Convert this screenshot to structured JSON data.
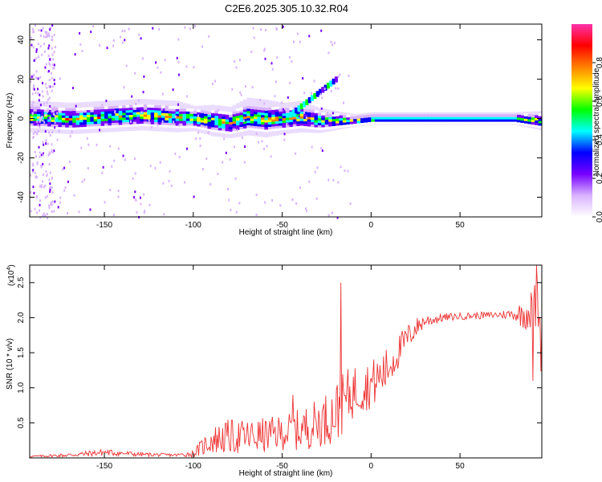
{
  "title": "C2E6.2025.305.10.32.R04",
  "chart_data": [
    {
      "type": "heatmap",
      "title": "C2E6.2025.305.10.32.R04",
      "xlabel": "Height of straight line (km)",
      "ylabel": "Frequency (Hz)",
      "xlim": [
        -192,
        96
      ],
      "ylim": [
        -50,
        48
      ],
      "xticks": [
        -150,
        -100,
        -50,
        0,
        50
      ],
      "xtick_labels": [
        "-150",
        "-100",
        "-50",
        "0",
        "50"
      ],
      "yticks": [
        -40,
        -20,
        0,
        20,
        40
      ],
      "ytick_labels": [
        "-40",
        "-20",
        "0",
        "20",
        "40"
      ],
      "description_of_pattern": "Dense band of spectral power centred near 0 Hz across all heights; broad scatter (-50 to +48 Hz) below -180 km; rising branch from -45 km to -20 km reaching ~+20 Hz; narrow stable band above 0 km",
      "ridge": {
        "x": [
          -190,
          -170,
          -150,
          -130,
          -110,
          -100,
          -90,
          -80,
          -70,
          -60,
          -50,
          -40,
          -30,
          -20,
          -10,
          0,
          20,
          40,
          60,
          80,
          94
        ],
        "frequency_hz": [
          1,
          0,
          1,
          2,
          1,
          0,
          -1,
          -2,
          1,
          0,
          0,
          1,
          -1,
          -1,
          -1,
          0,
          0,
          0,
          0,
          0,
          -1
        ],
        "half_width_hz": [
          5,
          5,
          5,
          5,
          5,
          4,
          5,
          5,
          6,
          6,
          5,
          5,
          4,
          3,
          2,
          2,
          2,
          2,
          2,
          2,
          3
        ]
      },
      "colorbar": {
        "label": "Normalized spectral amplitude",
        "range": [
          0.0,
          1.0
        ],
        "ticks": [
          0.0,
          0.2,
          0.4,
          0.6,
          0.8
        ],
        "tick_labels": [
          "0.0",
          "0.2",
          "0.4",
          "0.6",
          "0.8"
        ],
        "colors": [
          "#ffffff",
          "#d9b3ff",
          "#7700ff",
          "#0000ff",
          "#00ffff",
          "#00ff00",
          "#ffff00",
          "#ff8000",
          "#ff0000",
          "#ff33aa"
        ]
      }
    },
    {
      "type": "line",
      "xlabel": "Height of straight line (km)",
      "ylabel": "SNR (10 * v/v)",
      "y_scale_label_base": "(x10",
      "y_scale_label_exp": "4",
      "y_scale_label_end": ")",
      "xlim": [
        -192,
        96
      ],
      "ylim": [
        0,
        2.75
      ],
      "xticks": [
        -150,
        -100,
        -50,
        0,
        50
      ],
      "xtick_labels": [
        "-150",
        "-100",
        "-50",
        "0",
        "50"
      ],
      "yticks": [
        0.5,
        1.0,
        1.5,
        2.0,
        2.5
      ],
      "ytick_labels": [
        "0.5",
        "1.0",
        "1.5",
        "2.0",
        "2.5"
      ],
      "series": [
        {
          "name": "SNR",
          "color": "#ee3333",
          "x": [
            -192,
            -170,
            -150,
            -130,
            -110,
            -100,
            -90,
            -80,
            -70,
            -60,
            -50,
            -40,
            -30,
            -22,
            -18,
            -14,
            -10,
            -5,
            0,
            5,
            10,
            15,
            20,
            25,
            30,
            40,
            50,
            60,
            70,
            80,
            85,
            90,
            94,
            96
          ],
          "mean": [
            0.02,
            0.04,
            0.08,
            0.05,
            0.04,
            0.06,
            0.25,
            0.3,
            0.3,
            0.32,
            0.36,
            0.4,
            0.5,
            0.6,
            0.7,
            0.85,
            0.95,
            1.0,
            1.05,
            1.15,
            1.3,
            1.5,
            1.7,
            1.85,
            1.95,
            2.0,
            2.02,
            2.03,
            2.04,
            2.05,
            2.05,
            2.1,
            2.2,
            1.5
          ],
          "spread": [
            0.01,
            0.03,
            0.05,
            0.03,
            0.02,
            0.05,
            0.2,
            0.25,
            0.25,
            0.25,
            0.25,
            0.3,
            0.35,
            0.4,
            0.45,
            0.4,
            0.4,
            0.35,
            0.35,
            0.35,
            0.3,
            0.25,
            0.2,
            0.15,
            0.1,
            0.06,
            0.05,
            0.05,
            0.05,
            0.08,
            0.2,
            0.3,
            0.4,
            0.5
          ],
          "spikes": [
            {
              "x": -17,
              "y": 2.5
            },
            {
              "x": -44,
              "y": 0.9
            },
            {
              "x": 93,
              "y": 2.75
            },
            {
              "x": 91,
              "y": 1.1
            }
          ]
        }
      ]
    }
  ]
}
